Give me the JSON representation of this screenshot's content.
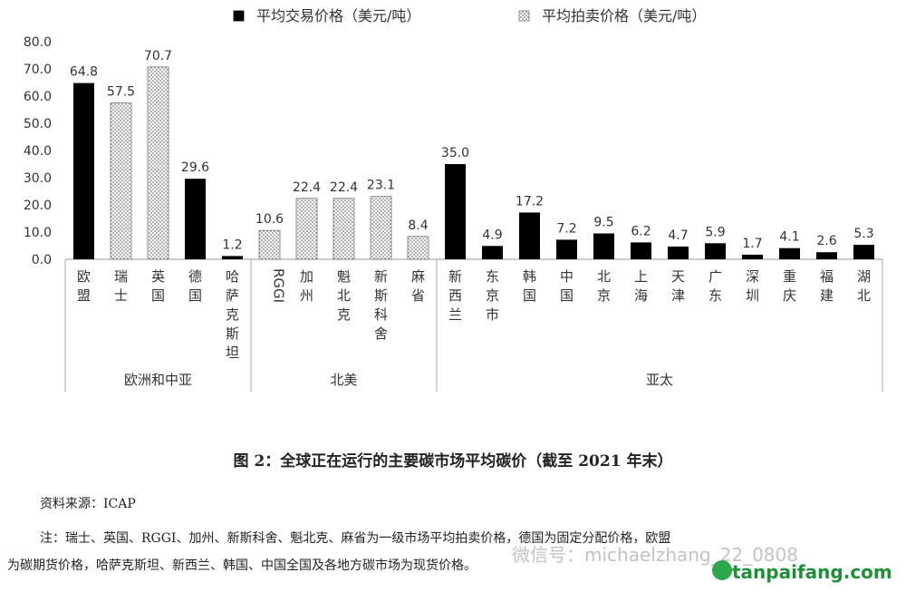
{
  "chart_data": {
    "type": "bar",
    "legend": [
      {
        "label": "平均交易价格（美元/吨）",
        "pattern": "solid",
        "color": "#000000"
      },
      {
        "label": "平均拍卖价格（美元/吨）",
        "pattern": "dots",
        "color": "#555555"
      }
    ],
    "legend_position": "top",
    "ylim": [
      0,
      80
    ],
    "yticks": [
      "0.0",
      "10.0",
      "20.0",
      "30.0",
      "40.0",
      "50.0",
      "60.0",
      "70.0",
      "80.0"
    ],
    "grid": false,
    "categories": [
      "欧盟",
      "瑞士",
      "英国",
      "德国",
      "哈萨克斯坦",
      "RGGI",
      "加州",
      "魁北克",
      "新斯科舍",
      "麻省",
      "新西兰",
      "东京市",
      "韩国",
      "中国",
      "北京",
      "上海",
      "天津",
      "广东",
      "深圳",
      "重庆",
      "福建",
      "湖北"
    ],
    "values": [
      64.8,
      57.5,
      70.7,
      29.6,
      1.2,
      10.6,
      22.4,
      22.4,
      23.1,
      8.4,
      35.0,
      4.9,
      17.2,
      7.2,
      9.5,
      6.2,
      4.7,
      5.9,
      1.7,
      4.1,
      2.6,
      5.3
    ],
    "value_labels": [
      "64.8",
      "57.5",
      "70.7",
      "29.6",
      "1.2",
      "10.6",
      "22.4",
      "22.4",
      "23.1",
      "8.4",
      "35.0",
      "4.9",
      "17.2",
      "7.2",
      "9.5",
      "6.2",
      "4.7",
      "5.9",
      "1.7",
      "4.1",
      "2.6",
      "5.3"
    ],
    "price_type": [
      "trade",
      "auction",
      "auction",
      "trade",
      "trade",
      "auction",
      "auction",
      "auction",
      "auction",
      "auction",
      "trade",
      "trade",
      "trade",
      "trade",
      "trade",
      "trade",
      "trade",
      "trade",
      "trade",
      "trade",
      "trade",
      "trade"
    ],
    "groups": [
      {
        "name": "欧洲和中亚",
        "start": 0,
        "end": 4
      },
      {
        "name": "北美",
        "start": 5,
        "end": 9
      },
      {
        "name": "亚太",
        "start": 10,
        "end": 21
      }
    ]
  },
  "caption": "图 2：全球正在运行的主要碳市场平均碳价（截至 2021 年末）",
  "source": "资料来源：ICAP",
  "note_line1": "注：瑞士、英国、RGGI、加州、新斯科舍、魁北克、麻省为一级市场平均拍卖价格，德国为固定分配价格，欧盟",
  "note_line2": "为碳期货价格，哈萨克斯坦、新西兰、韩国、中国全国及各地方碳市场为现货价格。",
  "watermark_wechat": "微信号：michaelzhang_22_0808",
  "watermark_site": "tanpaifang.com"
}
